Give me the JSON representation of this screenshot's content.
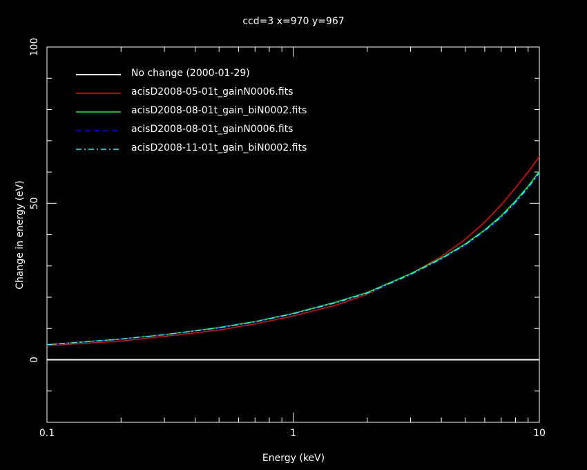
{
  "chart_data": {
    "type": "line",
    "title": "ccd=3 x=970 y=967",
    "xlabel": "Energy (keV)",
    "ylabel": "Change in energy (eV)",
    "xscale": "log",
    "xlim": [
      0.1,
      10
    ],
    "ylim": [
      -20,
      100
    ],
    "xticks": [
      0.1,
      1,
      10
    ],
    "xtick_labels": [
      "0.1",
      "1",
      "10"
    ],
    "yticks": [
      0,
      50,
      100
    ],
    "ytick_labels": [
      "0",
      "50",
      "100"
    ],
    "grid": false,
    "legend_position": "top-left",
    "x": [
      0.1,
      0.2,
      0.3,
      0.5,
      0.7,
      1,
      1.5,
      2,
      3,
      4,
      5,
      6,
      7,
      8,
      9,
      10
    ],
    "series": [
      {
        "name": "No change (2000-01-29)",
        "color": "#ffffff",
        "dash": "solid",
        "values": [
          0,
          0,
          0,
          0,
          0,
          0,
          0,
          0,
          0,
          0,
          0,
          0,
          0,
          0,
          0,
          0
        ]
      },
      {
        "name": "acisD2008-05-01t_gainN0006.fits",
        "color": "#ff0000",
        "dash": "solid",
        "values": [
          4.5,
          6.0,
          7.5,
          9.5,
          11.5,
          14.0,
          17.5,
          21.0,
          27.5,
          33.0,
          38.5,
          44.0,
          49.5,
          55.0,
          60.0,
          65.0
        ]
      },
      {
        "name": "acisD2008-08-01t_gain_biN0002.fits",
        "color": "#00ff00",
        "dash": "solid",
        "values": [
          4.8,
          6.6,
          8.0,
          10.3,
          12.2,
          14.8,
          18.5,
          21.5,
          27.5,
          32.5,
          37.0,
          41.5,
          46.0,
          50.8,
          55.5,
          60.2
        ]
      },
      {
        "name": "acisD2008-08-01t_gainN0006.fits",
        "color": "#0000ff",
        "dash": "dashed",
        "values": [
          4.7,
          6.5,
          7.9,
          10.1,
          12.0,
          14.6,
          18.2,
          21.2,
          27.2,
          32.1,
          36.6,
          41.0,
          45.4,
          50.1,
          54.8,
          59.5
        ]
      },
      {
        "name": "acisD2008-11-01t_gain_biN0002.fits",
        "color": "#00ffff",
        "dash": "dashdot",
        "values": [
          4.8,
          6.6,
          8.0,
          10.2,
          12.1,
          14.7,
          18.3,
          21.3,
          27.3,
          32.3,
          36.8,
          41.3,
          45.7,
          50.4,
          55.1,
          59.8
        ]
      }
    ]
  }
}
